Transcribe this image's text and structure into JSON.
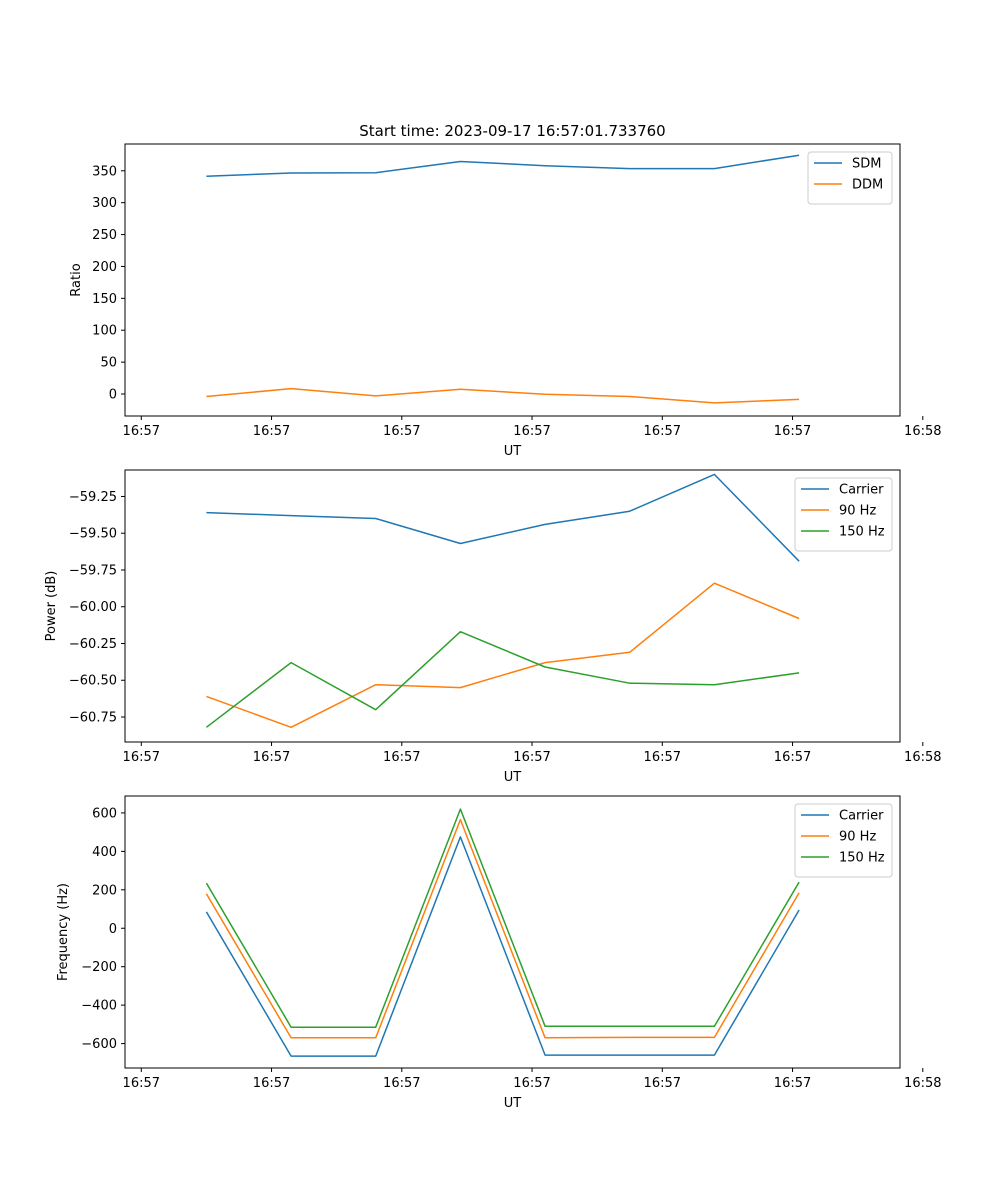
{
  "figure": {
    "title": "Start time: 2023-09-17 16:57:01.733760"
  },
  "colors": {
    "blue": "#1f77b4",
    "orange": "#ff7f0e",
    "green": "#2ca02c"
  },
  "chart_data": [
    {
      "type": "line",
      "title": "Start time: 2023-09-17 16:57:01.733760",
      "xlabel": "UT",
      "ylabel": "Ratio",
      "xlim": [
        -0.25,
        11.65
      ],
      "ylim": [
        -34.5,
        392
      ],
      "x": [
        1,
        2.3,
        3.6,
        4.9,
        6.2,
        7.5,
        8.8,
        10.1
      ],
      "x_ticks": [
        0,
        2,
        4,
        6,
        8,
        10,
        12
      ],
      "x_tick_labels": [
        "16:57",
        "16:57",
        "16:57",
        "16:57",
        "16:57",
        "16:57",
        "16:58"
      ],
      "y_ticks": [
        0,
        50,
        100,
        150,
        200,
        250,
        300,
        350
      ],
      "y_tick_labels": [
        "0",
        "50",
        "100",
        "150",
        "200",
        "250",
        "300",
        "350"
      ],
      "legend_position": "top-right",
      "series": [
        {
          "name": "SDM",
          "color": "#1f77b4",
          "values": [
            341.5,
            346.5,
            347,
            364.5,
            358,
            353.5,
            353.5,
            374.5
          ]
        },
        {
          "name": "DDM",
          "color": "#ff7f0e",
          "values": [
            -4,
            8.5,
            -3,
            7.5,
            -0.5,
            -4,
            -14,
            -8.5
          ]
        }
      ]
    },
    {
      "type": "line",
      "title": "",
      "xlabel": "UT",
      "ylabel": "Power (dB)",
      "xlim": [
        -0.25,
        11.65
      ],
      "ylim": [
        -60.92,
        -59.07
      ],
      "x": [
        1,
        2.3,
        3.6,
        4.9,
        6.2,
        7.5,
        8.8,
        10.1
      ],
      "x_ticks": [
        0,
        2,
        4,
        6,
        8,
        10,
        12
      ],
      "x_tick_labels": [
        "16:57",
        "16:57",
        "16:57",
        "16:57",
        "16:57",
        "16:57",
        "16:58"
      ],
      "y_ticks": [
        -60.75,
        -60.5,
        -60.25,
        -60.0,
        -59.75,
        -59.5,
        -59.25
      ],
      "y_tick_labels": [
        "−60.75",
        "−60.50",
        "−60.25",
        "−60.00",
        "−59.75",
        "−59.50",
        "−59.25"
      ],
      "legend_position": "top-right",
      "series": [
        {
          "name": "Carrier",
          "color": "#1f77b4",
          "values": [
            -59.36,
            -59.38,
            -59.4,
            -59.57,
            -59.44,
            -59.35,
            -59.1,
            -59.69
          ]
        },
        {
          "name": "90 Hz",
          "color": "#ff7f0e",
          "values": [
            -60.61,
            -60.82,
            -60.53,
            -60.55,
            -60.38,
            -60.31,
            -59.84,
            -60.08
          ]
        },
        {
          "name": "150 Hz",
          "color": "#2ca02c",
          "values": [
            -60.82,
            -60.38,
            -60.7,
            -60.17,
            -60.41,
            -60.52,
            -60.53,
            -60.45
          ]
        }
      ]
    },
    {
      "type": "line",
      "title": "",
      "xlabel": "UT",
      "ylabel": "Frequency (Hz)",
      "xlim": [
        -0.25,
        11.65
      ],
      "ylim": [
        -727,
        688
      ],
      "x": [
        1,
        2.3,
        3.6,
        4.9,
        6.2,
        7.5,
        8.8,
        10.1
      ],
      "x_ticks": [
        0,
        2,
        4,
        6,
        8,
        10,
        12
      ],
      "x_tick_labels": [
        "16:57",
        "16:57",
        "16:57",
        "16:57",
        "16:57",
        "16:57",
        "16:58"
      ],
      "y_ticks": [
        -600,
        -400,
        -200,
        0,
        200,
        400,
        600
      ],
      "y_tick_labels": [
        "−600",
        "−400",
        "−200",
        "0",
        "200",
        "400",
        "600"
      ],
      "legend_position": "top-right",
      "series": [
        {
          "name": "Carrier",
          "color": "#1f77b4",
          "values": [
            85,
            -665,
            -665,
            475,
            -660,
            -660,
            -660,
            95
          ]
        },
        {
          "name": "90 Hz",
          "color": "#ff7f0e",
          "values": [
            180,
            -570,
            -570,
            565,
            -570,
            -568,
            -568,
            185
          ]
        },
        {
          "name": "150 Hz",
          "color": "#2ca02c",
          "values": [
            235,
            -515,
            -515,
            620,
            -510,
            -510,
            -510,
            240
          ]
        }
      ]
    }
  ]
}
